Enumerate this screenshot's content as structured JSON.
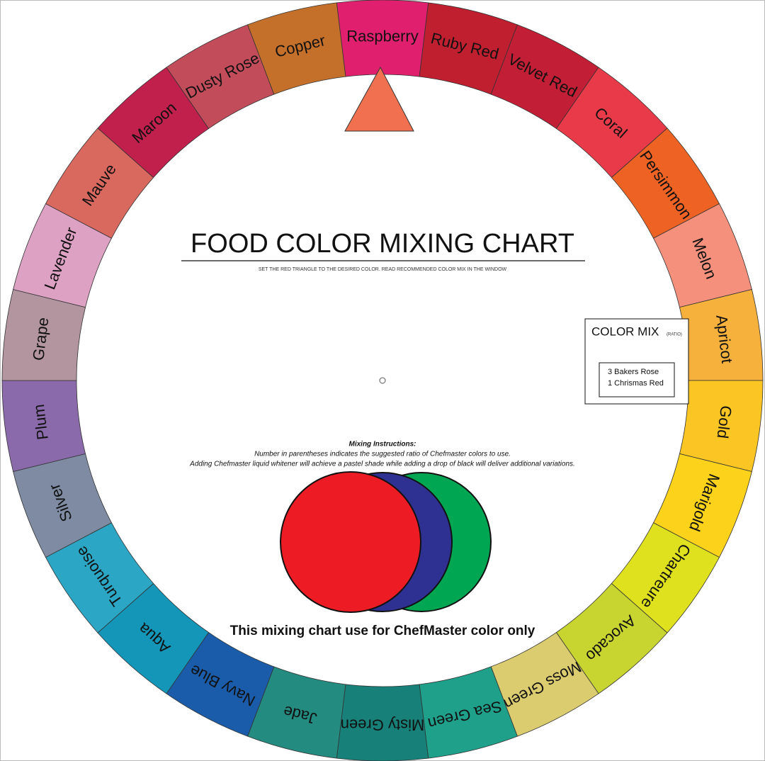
{
  "title": "FOOD COLOR MIXING CHART",
  "subtitle": "SET THE RED TRIANGLE TO THE DESIRED COLOR. READ RECOMMENDED COLOR MIX IN THE WINDOW",
  "color_mix": {
    "heading": "COLOR MIX",
    "note": "(RATIO)",
    "lines": [
      "3 Bakers Rose",
      "1 Chrismas Red"
    ]
  },
  "instructions": {
    "title": "Mixing Instructions:",
    "lines": [
      "Number in parentheses indicates the suggested ratio of Chefmaster colors to use.",
      "Adding Chefmaster liquid whitener will achieve a pastel shade while adding a drop of black will deliver additional variations."
    ]
  },
  "footer": "This mixing chart use for ChefMaster color only",
  "segments": [
    {
      "label": "Raspberry",
      "color": "#e0206e"
    },
    {
      "label": "Ruby Red",
      "color": "#c01f30"
    },
    {
      "label": "Velvet Red",
      "color": "#c21e35"
    },
    {
      "label": "Coral",
      "color": "#e83a48"
    },
    {
      "label": "Persimmon",
      "color": "#ee6223"
    },
    {
      "label": "Melon",
      "color": "#f4907c"
    },
    {
      "label": "Apricot",
      "color": "#f5b13c"
    },
    {
      "label": "Gold",
      "color": "#fbc524"
    },
    {
      "label": "Marigold",
      "color": "#fcd21b"
    },
    {
      "label": "Chartreure",
      "color": "#dfe11f"
    },
    {
      "label": "Avocado",
      "color": "#c8d42f"
    },
    {
      "label": "Moss Green",
      "color": "#dccc70"
    },
    {
      "label": "Sea Green",
      "color": "#1fa08a"
    },
    {
      "label": "Misty Green",
      "color": "#178079"
    },
    {
      "label": "Jade",
      "color": "#238b7f"
    },
    {
      "label": "Navy Blue",
      "color": "#1b5caa"
    },
    {
      "label": "Aqua",
      "color": "#1496b9"
    },
    {
      "label": "Turquoise",
      "color": "#2ba7c5"
    },
    {
      "label": "Silver",
      "color": "#7e8ba3"
    },
    {
      "label": "Plum",
      "color": "#8a6aaa"
    },
    {
      "label": "Grape",
      "color": "#b3959f"
    },
    {
      "label": "Lavender",
      "color": "#dda1c4"
    },
    {
      "label": "Mauve",
      "color": "#d9685f"
    },
    {
      "label": "Maroon",
      "color": "#c11f4c"
    },
    {
      "label": "Dusty Rose",
      "color": "#c24c5a"
    },
    {
      "label": "Copper",
      "color": "#c4702b"
    }
  ]
}
